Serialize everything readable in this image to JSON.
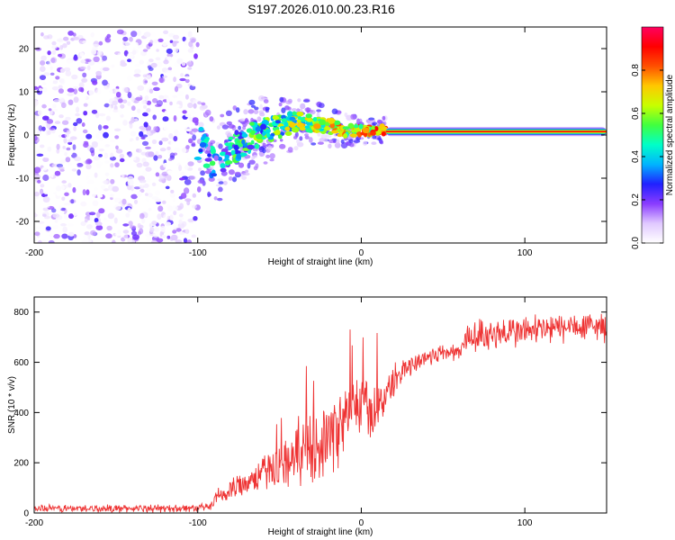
{
  "title": "S197.2026.010.00.23.R16",
  "chart_data": [
    {
      "type": "heatmap",
      "xlabel": "Height of straight line (km)",
      "ylabel": "Frequency (Hz)",
      "xlim": [
        -200,
        150
      ],
      "ylim": [
        -25,
        25
      ],
      "xticks": [
        -200,
        -100,
        0,
        100
      ],
      "yticks": [
        -20,
        -10,
        0,
        10,
        20
      ],
      "colorbar": {
        "label": "Normalized spectral amplitude",
        "range": [
          0.0,
          1.0
        ],
        "ticks": [
          "0.0",
          "0.2",
          "0.4",
          "0.6",
          "0.8"
        ],
        "stops": [
          "#ffffff",
          "#e0c8ff",
          "#8a3cff",
          "#2020ff",
          "#00b4ff",
          "#00ffc8",
          "#40ff40",
          "#c8ff00",
          "#ffc800",
          "#ff5000",
          "#ff0000",
          "#ff0060"
        ]
      },
      "features": [
        {
          "region": "noise",
          "x_range": [
            -200,
            -100
          ],
          "f_range": [
            -25,
            24
          ],
          "amplitude_range": [
            0.0,
            0.25
          ]
        },
        {
          "region": "transition",
          "x_range": [
            -100,
            15
          ],
          "f_track": [
            [
              -98,
              -2
            ],
            [
              -92,
              -6
            ],
            [
              -85,
              -5
            ],
            [
              -78,
              -3
            ],
            [
              -70,
              -1
            ],
            [
              -60,
              1
            ],
            [
              -50,
              2
            ],
            [
              -40,
              3
            ],
            [
              -30,
              3
            ],
            [
              -20,
              2
            ],
            [
              -10,
              1
            ],
            [
              0,
              1
            ],
            [
              10,
              1
            ],
            [
              15,
              1
            ]
          ],
          "amplitude_range": [
            0.1,
            0.9
          ]
        },
        {
          "region": "stable",
          "x_range": [
            15,
            150
          ],
          "frequency_hz": 0.8,
          "peak_amplitude": 0.9
        }
      ]
    },
    {
      "type": "line",
      "xlabel": "Height of straight line (km)",
      "ylabel": "SNR (10 * v/v)",
      "xlim": [
        -200,
        150
      ],
      "ylim": [
        0,
        860
      ],
      "xticks": [
        -200,
        -100,
        0,
        100
      ],
      "yticks": [
        0,
        200,
        400,
        600,
        800
      ],
      "series": [
        {
          "name": "SNR",
          "color": "#ee3333",
          "x": [
            -200,
            -180,
            -160,
            -140,
            -120,
            -100,
            -92,
            -88,
            -80,
            -70,
            -60,
            -50,
            -40,
            -30,
            -20,
            -12,
            -5,
            0,
            5,
            10,
            15,
            20,
            25,
            30,
            40,
            50,
            60,
            65,
            70,
            80,
            90,
            100,
            110,
            120,
            130,
            140,
            150
          ],
          "y": [
            18,
            18,
            18,
            18,
            18,
            20,
            25,
            60,
            90,
            130,
            160,
            190,
            220,
            260,
            300,
            350,
            420,
            440,
            400,
            420,
            470,
            530,
            560,
            590,
            620,
            640,
            640,
            700,
            705,
            715,
            720,
            725,
            730,
            735,
            740,
            740,
            745
          ],
          "noise_amplitude": [
            [
              -200,
              18
            ],
            [
              -92,
              18
            ],
            [
              -85,
              60
            ],
            [
              -60,
              80
            ],
            [
              -40,
              130
            ],
            [
              -20,
              180
            ],
            [
              0,
              150
            ],
            [
              15,
              90
            ],
            [
              30,
              50
            ],
            [
              60,
              40
            ],
            [
              66,
              80
            ],
            [
              150,
              70
            ]
          ]
        }
      ]
    }
  ]
}
